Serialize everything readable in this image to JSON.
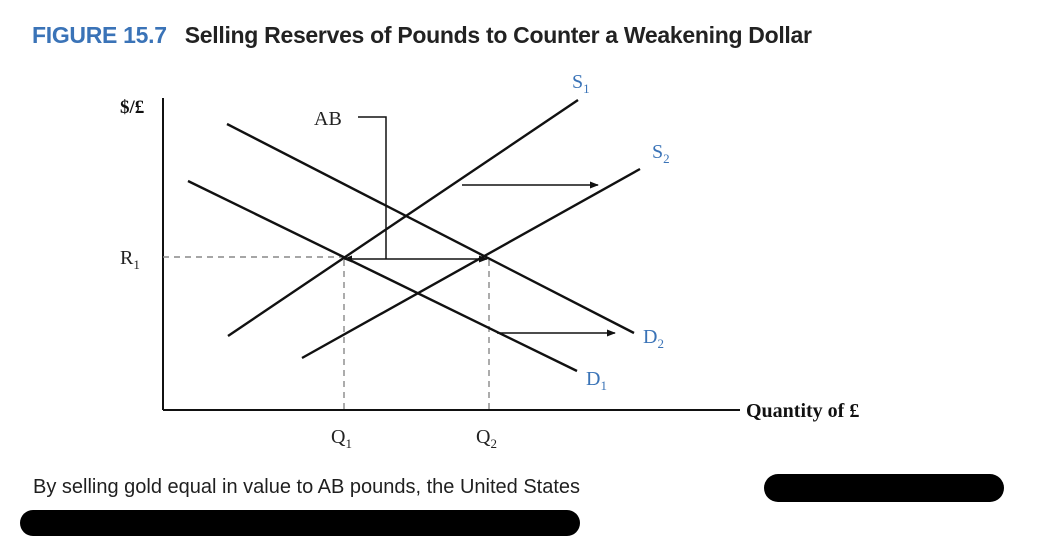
{
  "figure": {
    "number": "FIGURE 15.7",
    "title": "Selling Reserves of Pounds to Counter a Weakening Dollar"
  },
  "diagram": {
    "y_axis_label": "$/£",
    "x_axis_label": "Quantity of £",
    "price_label": "R",
    "price_sub": "1",
    "q1_label": "Q",
    "q1_sub": "1",
    "q2_label": "Q",
    "q2_sub": "2",
    "s1_label": "S",
    "s1_sub": "1",
    "s2_label": "S",
    "s2_sub": "2",
    "d1_label": "D",
    "d1_sub": "1",
    "d2_label": "D",
    "d2_sub": "2",
    "gap_label": "AB",
    "colors": {
      "curve_label": "#3a73b7",
      "line": "#111111",
      "guide": "#888888"
    }
  },
  "caption": {
    "text": "By selling gold equal in value to AB pounds, the United States"
  }
}
